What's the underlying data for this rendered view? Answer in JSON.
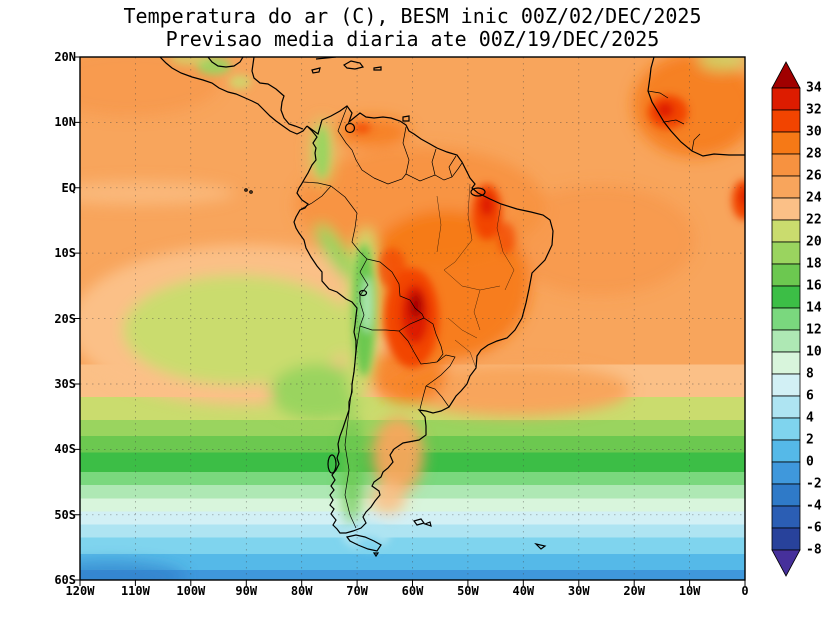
{
  "title": {
    "line1": "Temperatura do ar (C), BESM inic 00Z/02/DEC/2025",
    "line2": "Previsao media diaria ate 00Z/19/DEC/2025"
  },
  "axes": {
    "lat_labels": [
      "20N",
      "10N",
      "EQ",
      "10S",
      "20S",
      "30S",
      "40S",
      "50S",
      "60S"
    ],
    "lon_labels": [
      "120W",
      "110W",
      "100W",
      "90W",
      "80W",
      "70W",
      "60W",
      "50W",
      "40W",
      "30W",
      "20W",
      "10W",
      "0"
    ]
  },
  "colorbar": {
    "labels": [
      "34",
      "32",
      "30",
      "28",
      "26",
      "24",
      "22",
      "20",
      "18",
      "16",
      "14",
      "12",
      "10",
      "8",
      "6",
      "4",
      "2",
      "0",
      "-2",
      "-4",
      "-6",
      "-8"
    ],
    "colors": [
      "#a00000",
      "#dd1c00",
      "#f24400",
      "#f67916",
      "#f79240",
      "#f8a55c",
      "#fbc087",
      "#cadc6e",
      "#9ad45f",
      "#6cc850",
      "#3cbe46",
      "#7ad87e",
      "#aee8b4",
      "#d8f5dc",
      "#d2f0f5",
      "#aee4f2",
      "#7fd4ee",
      "#55b9e8",
      "#3f98dc",
      "#2f7ac8",
      "#2b5eb4",
      "#28429b",
      "#46309b"
    ]
  },
  "chart_data": {
    "type": "heatmap",
    "title": "Temperatura do ar (C), BESM inic 00Z/02/DEC/2025",
    "subtitle": "Previsao media diaria ate 00Z/19/DEC/2025",
    "variable": "air temperature",
    "units": "C",
    "model": "BESM",
    "init": "00Z/02/DEC/2025",
    "valid_through": "00Z/19/DEC/2025",
    "xlabel": "longitude",
    "ylabel": "latitude",
    "xlim": [
      "120W",
      "0"
    ],
    "ylim": [
      "60S",
      "20N"
    ],
    "grid": "dotted 10-degree graticule",
    "legend_position": "right vertical colorbar with arrow ends",
    "colorbar_levels": [
      34,
      32,
      30,
      28,
      26,
      24,
      22,
      20,
      18,
      16,
      14,
      12,
      10,
      8,
      6,
      4,
      2,
      0,
      -2,
      -4,
      -6,
      -8
    ],
    "x": [
      "120W",
      "110W",
      "100W",
      "90W",
      "80W",
      "70W",
      "60W",
      "50W",
      "40W",
      "30W",
      "20W",
      "10W",
      "0"
    ],
    "y": [
      "20N",
      "10N",
      "EQ",
      "10S",
      "20S",
      "30S",
      "40S",
      "50S",
      "60S"
    ],
    "values_c": [
      [
        25,
        25,
        25,
        26,
        26,
        26,
        25,
        25,
        25,
        24,
        24,
        23,
        21
      ],
      [
        26,
        26,
        26,
        26,
        27,
        27,
        26,
        25,
        25,
        25,
        25,
        25,
        26
      ],
      [
        25,
        25,
        25,
        25,
        26,
        27,
        27,
        26,
        26,
        26,
        26,
        26,
        28
      ],
      [
        24,
        24,
        23,
        22,
        23,
        26,
        28,
        29,
        27,
        26,
        26,
        25,
        26
      ],
      [
        24,
        23,
        22,
        21,
        22,
        15,
        32,
        28,
        27,
        26,
        25,
        25,
        25
      ],
      [
        22,
        21,
        21,
        20,
        20,
        18,
        26,
        25,
        24,
        24,
        24,
        24,
        24
      ],
      [
        16,
        16,
        16,
        16,
        16,
        13,
        21,
        17,
        17,
        17,
        17,
        17,
        17
      ],
      [
        8,
        8,
        8,
        8,
        8,
        7,
        6,
        9,
        9,
        9,
        9,
        9,
        9
      ],
      [
        2,
        2,
        2,
        2,
        2,
        2,
        1,
        1,
        2,
        2,
        2,
        2,
        2
      ]
    ],
    "features": [
      "Hot core 30-34C over Paraguay / Mato Grosso do Sul / northern Argentina (about 15S-25S, 55-62W)",
      "Secondary hot patch 28-32C over interior northeast Brazil near 5S-10S, 45-50W",
      "Cool Andes corridor 8-20C running from Peru through Bolivia to central Chile",
      "Cool southeast Pacific tongue 20-24C off Peru and northern Chile",
      "Zonal bands cooling southward: green 14-20C near 35-43S, pale 8-12C near 44-48S, cyan/blue 0-6C south of 50S",
      "Small red patch over West Africa near 10-15N and near the Gulf of Guinea at the right edge"
    ]
  }
}
